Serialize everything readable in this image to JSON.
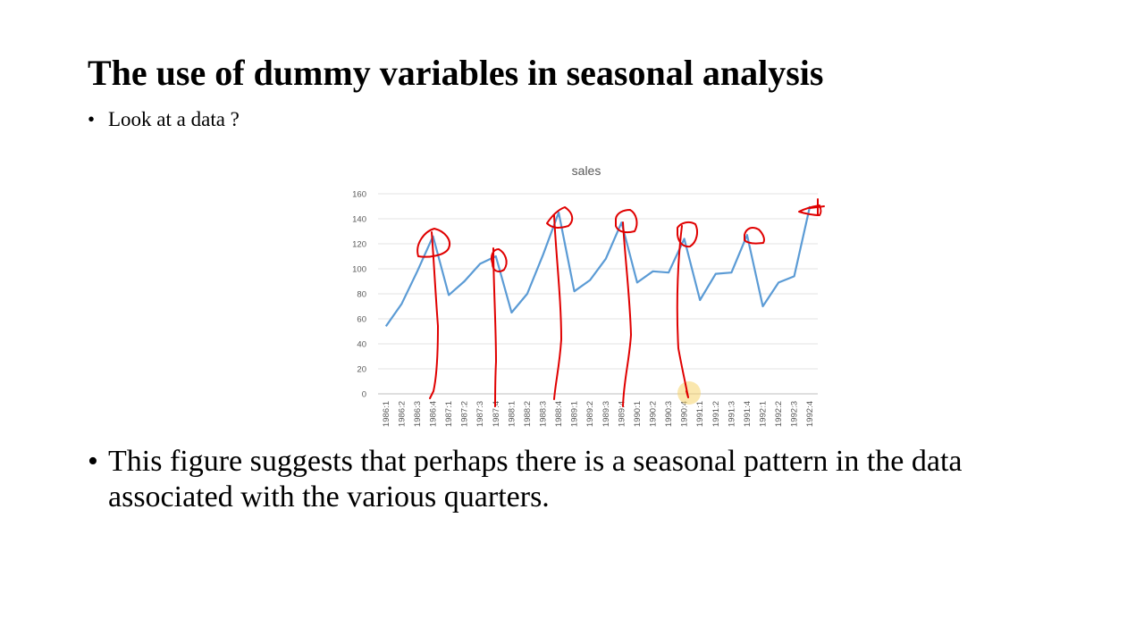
{
  "slide": {
    "title": "The use of dummy variables in seasonal analysis",
    "bullet_1": "Look at a data ?",
    "bullet_2": "This figure suggests that perhaps there is a seasonal pattern in the data associated with the various quarters.",
    "bullet_marker": "•"
  },
  "chart_data": {
    "type": "line",
    "title": "sales",
    "xlabel": "",
    "ylabel": "",
    "ylim": [
      0,
      160
    ],
    "yticks": [
      0,
      20,
      40,
      60,
      80,
      100,
      120,
      140,
      160
    ],
    "grid": true,
    "line_color": "#5b9bd5",
    "categories": [
      "1986:1",
      "1986:2",
      "1986:3",
      "1986:4",
      "1987:1",
      "1987:2",
      "1987:3",
      "1987:4",
      "1988:1",
      "1988:2",
      "1988:3",
      "1988:4",
      "1989:1",
      "1989:2",
      "1989:3",
      "1989:4",
      "1990:1",
      "1990:2",
      "1990:3",
      "1990:4",
      "1991:1",
      "1991:2",
      "1991:3",
      "1991:4",
      "1992:1",
      "1992:2",
      "1992:3",
      "1992:4"
    ],
    "series": [
      {
        "values": [
          54,
          72,
          98,
          126,
          79,
          90,
          104,
          110,
          65,
          80,
          111,
          145,
          82,
          91,
          108,
          137,
          89,
          98,
          97,
          124,
          75,
          96,
          97,
          127,
          70,
          89,
          94,
          150
        ]
      }
    ]
  },
  "annotations": {
    "color": "#e00000",
    "highlight_color": "#f5d36b"
  }
}
